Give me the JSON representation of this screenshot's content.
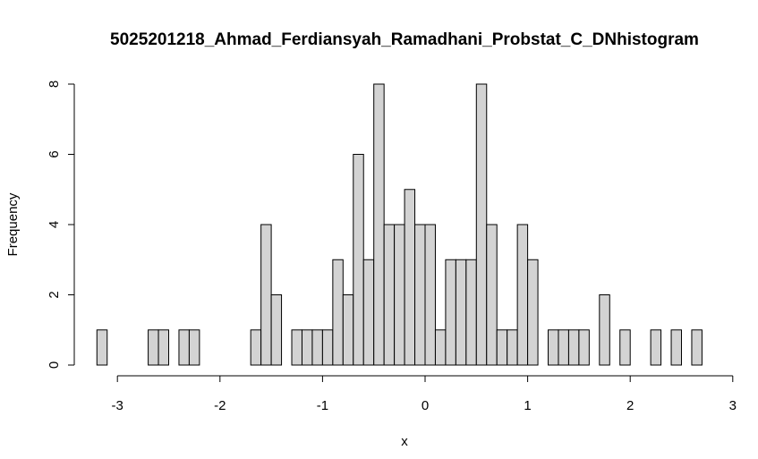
{
  "chart_data": {
    "type": "bar",
    "title": "5025201218_Ahmad_Ferdiansyah_Ramadhani_Probstat_C_DNhistogram",
    "xlabel": "x",
    "ylabel": "Frequency",
    "bin_width": 0.1,
    "bin_start": -3.2,
    "xlim": [
      -3.2,
      3.0
    ],
    "ylim": [
      0,
      8
    ],
    "x_ticks": [
      -3,
      -2,
      -1,
      0,
      1,
      2,
      3
    ],
    "x_tick_labels": [
      "-3",
      "-2",
      "-1",
      "0",
      "1",
      "2",
      "3"
    ],
    "y_ticks": [
      0,
      2,
      4,
      6,
      8
    ],
    "y_tick_labels": [
      "0",
      "2",
      "4",
      "6",
      "8"
    ],
    "values": [
      1,
      0,
      0,
      0,
      0,
      1,
      1,
      0,
      1,
      1,
      0,
      0,
      0,
      0,
      0,
      1,
      4,
      2,
      0,
      1,
      1,
      1,
      1,
      3,
      2,
      6,
      3,
      8,
      4,
      4,
      5,
      4,
      4,
      1,
      3,
      3,
      3,
      8,
      4,
      1,
      1,
      4,
      3,
      0,
      1,
      1,
      1,
      1,
      0,
      2,
      0,
      1,
      0,
      0,
      1,
      0,
      1,
      0,
      1
    ],
    "grid": false,
    "bar_color": "#d3d3d3"
  }
}
